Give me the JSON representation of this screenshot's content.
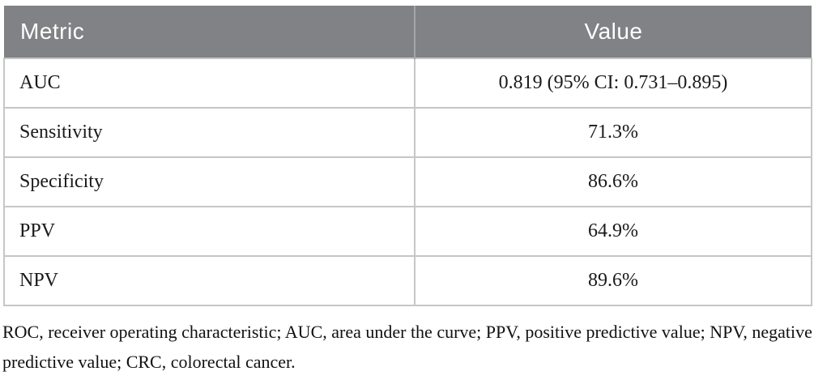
{
  "table": {
    "columns": {
      "metric": "Metric",
      "value": "Value"
    },
    "rows": [
      {
        "metric": "AUC",
        "value": "0.819 (95% CI: 0.731–0.895)"
      },
      {
        "metric": "Sensitivity",
        "value": "71.3%"
      },
      {
        "metric": "Specificity",
        "value": "86.6%"
      },
      {
        "metric": "PPV",
        "value": "64.9%"
      },
      {
        "metric": "NPV",
        "value": "89.6%"
      }
    ]
  },
  "footnote": "ROC, receiver operating characteristic; AUC, area under the curve; PPV, positive predictive value; NPV, negative predictive value; CRC, colorectal cancer.",
  "colors": {
    "header_bg": "#808285",
    "header_text": "#ffffff",
    "border": "#c6c6c6",
    "body_text": "#1a1a1a",
    "background": "#ffffff"
  },
  "chart_data": {
    "type": "table",
    "title": "",
    "columns": [
      "Metric",
      "Value"
    ],
    "rows": [
      [
        "AUC",
        "0.819 (95% CI: 0.731–0.895)"
      ],
      [
        "Sensitivity",
        "71.3%"
      ],
      [
        "Specificity",
        "86.6%"
      ],
      [
        "PPV",
        "64.9%"
      ],
      [
        "NPV",
        "89.6%"
      ]
    ]
  }
}
